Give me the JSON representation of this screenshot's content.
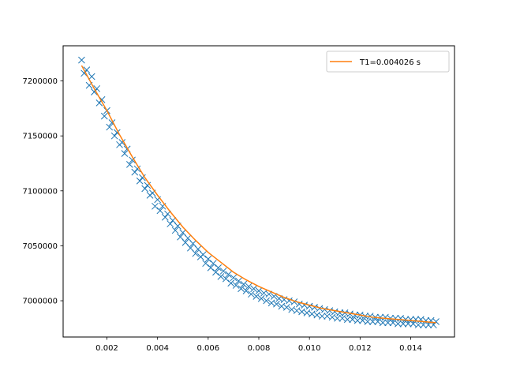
{
  "chart_data": {
    "type": "scatter",
    "title": "",
    "xlabel": "",
    "ylabel": "",
    "xlim": [
      0.00027,
      0.01573
    ],
    "ylim": [
      6967000,
      7232000
    ],
    "x_ticks": [
      0.002,
      0.004,
      0.006,
      0.008,
      0.01,
      0.012,
      0.014
    ],
    "x_tick_labels": [
      "0.002",
      "0.004",
      "0.006",
      "0.008",
      "0.010",
      "0.012",
      "0.014"
    ],
    "y_ticks": [
      7000000,
      7050000,
      7100000,
      7150000,
      7200000
    ],
    "y_tick_labels": [
      "7000000",
      "7050000",
      "7100000",
      "7150000",
      "7200000"
    ],
    "grid": false,
    "legend_position": "top-right",
    "series": [
      {
        "kind": "scatter",
        "marker": "x",
        "color": "#1f77b4",
        "x": [
          0.001,
          0.0011,
          0.0012,
          0.0013,
          0.0014,
          0.0015,
          0.0016,
          0.0017,
          0.0018,
          0.0019,
          0.002,
          0.0021,
          0.0022,
          0.0023,
          0.0024,
          0.0025,
          0.0026,
          0.0027,
          0.0028,
          0.0029,
          0.003,
          0.0031,
          0.0032,
          0.0033,
          0.0034,
          0.0035,
          0.0036,
          0.0037,
          0.0038,
          0.0039,
          0.004,
          0.0041,
          0.0042,
          0.0043,
          0.0044,
          0.0045,
          0.0046,
          0.0047,
          0.0048,
          0.0049,
          0.005,
          0.0051,
          0.0052,
          0.0053,
          0.0054,
          0.0055,
          0.0056,
          0.0057,
          0.0058,
          0.0059,
          0.006,
          0.0061,
          0.0062,
          0.0063,
          0.0064,
          0.0065,
          0.0066,
          0.0067,
          0.0068,
          0.0069,
          0.007,
          0.0071,
          0.0072,
          0.0073,
          0.0074,
          0.0075,
          0.0076,
          0.0077,
          0.0078,
          0.0079,
          0.008,
          0.0081,
          0.0082,
          0.0083,
          0.0084,
          0.0085,
          0.0086,
          0.0087,
          0.0088,
          0.0089,
          0.009,
          0.0091,
          0.0092,
          0.0093,
          0.0094,
          0.0095,
          0.0096,
          0.0097,
          0.0098,
          0.0099,
          0.01,
          0.0101,
          0.0102,
          0.0103,
          0.0104,
          0.0105,
          0.0106,
          0.0107,
          0.0108,
          0.0109,
          0.011,
          0.0111,
          0.0112,
          0.0113,
          0.0114,
          0.0115,
          0.0116,
          0.0117,
          0.0118,
          0.0119,
          0.012,
          0.0121,
          0.0122,
          0.0123,
          0.0124,
          0.0125,
          0.0126,
          0.0127,
          0.0128,
          0.0129,
          0.013,
          0.0131,
          0.0132,
          0.0133,
          0.0134,
          0.0135,
          0.0136,
          0.0137,
          0.0138,
          0.0139,
          0.014,
          0.0141,
          0.0142,
          0.0143,
          0.0144,
          0.0145,
          0.0146,
          0.0147,
          0.0148,
          0.0149,
          0.015
        ],
        "y": [
          7219000,
          7207000,
          7210000,
          7196000,
          7204000,
          7190000,
          7193000,
          7180000,
          7183000,
          7168000,
          7173000,
          7158000,
          7162000,
          7150000,
          7153000,
          7142000,
          7144000,
          7134000,
          7138000,
          7124000,
          7128000,
          7117000,
          7120000,
          7109000,
          7112000,
          7102000,
          7105000,
          7096000,
          7098000,
          7086000,
          7092000,
          7082000,
          7086000,
          7076000,
          7079000,
          7070000,
          7073000,
          7064000,
          7068000,
          7058000,
          7062000,
          7053000,
          7057000,
          7048000,
          7052000,
          7043000,
          7047000,
          7040000,
          7042000,
          7034000,
          7038000,
          7030000,
          7034000,
          7026000,
          7030000,
          7022000,
          7027000,
          7020000,
          7024000,
          7016000,
          7021000,
          7014000,
          7018000,
          7011000,
          7015000,
          7009000,
          7013000,
          7006000,
          7011000,
          7004000,
          7009000,
          7002000,
          7007000,
          7000000,
          7006000,
          6998000,
          7004000,
          6997000,
          7002000,
          6995000,
          7001000,
          6994000,
          7000000,
          6992000,
          6999000,
          6991000,
          6997000,
          6990000,
          6996000,
          6989000,
          6995000,
          6988000,
          6994000,
          6987000,
          6993000,
          6986000,
          6992000,
          6986000,
          6991000,
          6985000,
          6990000,
          6984000,
          6989000,
          6984000,
          6989000,
          6983000,
          6988000,
          6983000,
          6987000,
          6982000,
          6987000,
          6982000,
          6986000,
          6981000,
          6986000,
          6981000,
          6985000,
          6981000,
          6985000,
          6980000,
          6985000,
          6980000,
          6984000,
          6980000,
          6984000,
          6979000,
          6984000,
          6979000,
          6983000,
          6979000,
          6983000,
          6979000,
          6983000,
          6978000,
          6983000,
          6978000,
          6982000,
          6978000,
          6982000,
          6978000,
          6981000
        ]
      },
      {
        "kind": "line",
        "name": "T1=0.004026 s",
        "color": "#ff7f0e",
        "x": [
          0.001,
          0.0015,
          0.002,
          0.0025,
          0.003,
          0.0035,
          0.004,
          0.0045,
          0.005,
          0.0055,
          0.006,
          0.0065,
          0.007,
          0.0075,
          0.008,
          0.0085,
          0.009,
          0.0095,
          0.01,
          0.0105,
          0.011,
          0.0115,
          0.012,
          0.0125,
          0.013,
          0.0135,
          0.014,
          0.0145,
          0.015
        ],
        "y": [
          7214000,
          7193000,
          7173000,
          7151000,
          7131000,
          7112000,
          7096000,
          7081000,
          7067000,
          7055000,
          7044000,
          7035000,
          7026000,
          7019000,
          7013000,
          7008000,
          7003000,
          6999000,
          6996000,
          6993000,
          6991000,
          6989000,
          6987000,
          6985000,
          6984000,
          6983000,
          6982000,
          6981000,
          6980000
        ]
      }
    ]
  }
}
